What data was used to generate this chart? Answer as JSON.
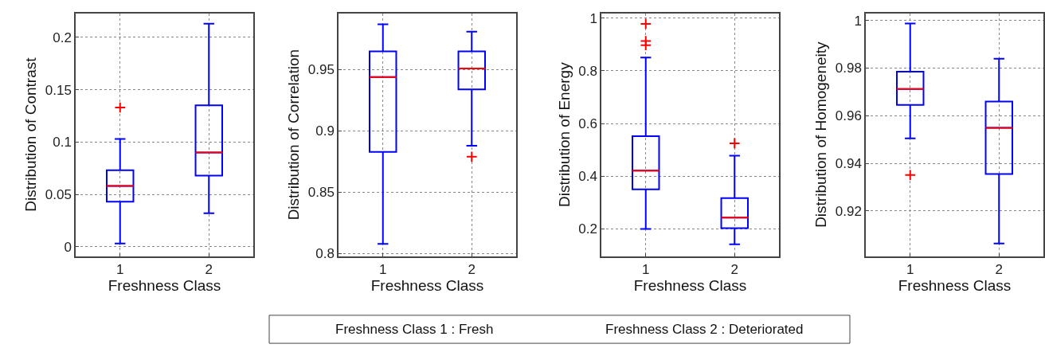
{
  "chart_data": [
    {
      "type": "box",
      "xlabel": "Freshness Class",
      "ylabel": "Distribution of Contrast",
      "categories": [
        "1",
        "2"
      ],
      "ylim": [
        -0.009,
        0.223
      ],
      "yticks": [
        0,
        0.05,
        0.1,
        0.15,
        0.2
      ],
      "grid": true,
      "marker": "cross",
      "series": [
        {
          "color": "#0000ff",
          "boxes": [
            {
              "low": 0.003,
              "q1": 0.043,
              "median": 0.058,
              "q3": 0.073,
              "high": 0.103,
              "outliers": [
                0.133
              ]
            },
            {
              "low": 0.032,
              "q1": 0.068,
              "median": 0.09,
              "q3": 0.135,
              "high": 0.213
            }
          ]
        }
      ]
    },
    {
      "type": "box",
      "xlabel": "Freshness Class",
      "ylabel": "Distribution of Correlation",
      "categories": [
        "1",
        "2"
      ],
      "ylim": [
        0.798,
        0.996
      ],
      "yticks": [
        0.8,
        0.85,
        0.9,
        0.95
      ],
      "grid": true,
      "marker": "cross",
      "series": [
        {
          "color": "#0000ff",
          "boxes": [
            {
              "low": 0.808,
              "q1": 0.883,
              "median": 0.944,
              "q3": 0.965,
              "high": 0.987
            },
            {
              "low": 0.888,
              "q1": 0.934,
              "median": 0.951,
              "q3": 0.965,
              "high": 0.981,
              "outliers": [
                0.879
              ]
            }
          ]
        }
      ]
    },
    {
      "type": "box",
      "xlabel": "Freshness Class",
      "ylabel": "Distribution of Energy",
      "categories": [
        "1",
        "2"
      ],
      "ylim": [
        0.097,
        1.018
      ],
      "yticks": [
        0.2,
        0.4,
        0.6,
        0.8,
        1
      ],
      "grid": true,
      "marker": "cross",
      "series": [
        {
          "color": "#0000ff",
          "boxes": [
            {
              "low": 0.2,
              "q1": 0.35,
              "median": 0.421,
              "q3": 0.552,
              "high": 0.85,
              "outliers": [
                0.978,
                0.913,
                0.897
              ]
            },
            {
              "low": 0.142,
              "q1": 0.203,
              "median": 0.243,
              "q3": 0.317,
              "high": 0.478,
              "outliers": [
                0.525
              ]
            }
          ]
        }
      ]
    },
    {
      "type": "box",
      "xlabel": "Freshness Class",
      "ylabel": "Distribution of Homogeneity",
      "categories": [
        "1",
        "2"
      ],
      "ylim": [
        0.901,
        1.003
      ],
      "yticks": [
        0.92,
        0.94,
        0.96,
        0.98,
        1
      ],
      "grid": true,
      "marker": "cross",
      "series": [
        {
          "color": "#0000ff",
          "boxes": [
            {
              "low": 0.9505,
              "q1": 0.9645,
              "median": 0.9712,
              "q3": 0.9785,
              "high": 0.9987,
              "outliers": [
                0.9351
              ]
            },
            {
              "low": 0.9063,
              "q1": 0.9355,
              "median": 0.9549,
              "q3": 0.9659,
              "high": 0.9839
            }
          ]
        }
      ]
    },
    {
      "type": "other",
      "annotations": [
        "Freshness Class 1 : Fresh",
        "Freshness Class 2 : Deteriorated"
      ]
    }
  ]
}
